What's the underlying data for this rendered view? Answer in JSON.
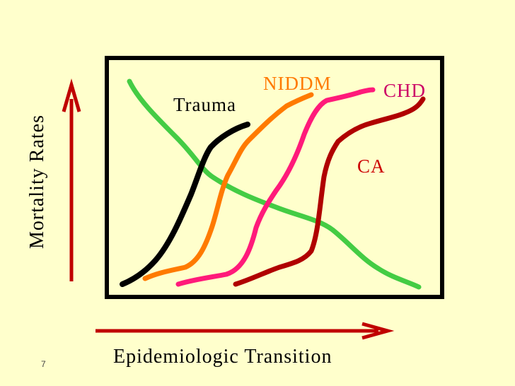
{
  "slide_number": "7",
  "y_axis_label": "Mortality  Rates",
  "x_axis_label": "Epidemiologic Transition",
  "curve_labels": {
    "trauma": "Trauma",
    "niddm": "NIDDM",
    "chd": "CHD",
    "ca": "CA"
  },
  "colors": {
    "background": "#ffffcc",
    "frame": "#000000",
    "arrows": "#c00000",
    "trauma": "#000000",
    "niddm": "#ff7a00",
    "chd": "#ff1a7a",
    "ca": "#b00000",
    "infectious": "#44cc44",
    "niddm_label": "#ff7a00",
    "chd_label": "#cc0066",
    "ca_label": "#cc0000"
  }
}
